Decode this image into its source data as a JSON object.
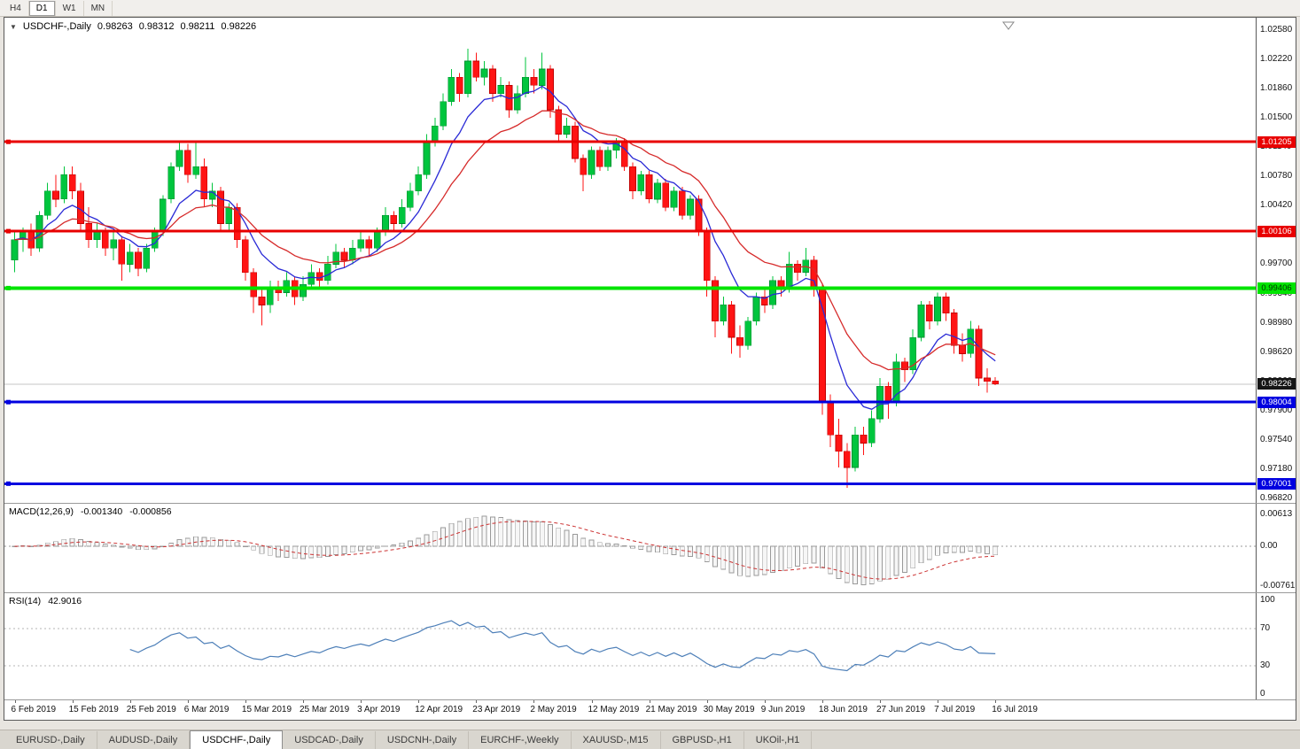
{
  "toolbar": {
    "timeframes": [
      {
        "label": "H4",
        "active": false
      },
      {
        "label": "D1",
        "active": true
      },
      {
        "label": "W1",
        "active": false
      },
      {
        "label": "MN",
        "active": false
      }
    ]
  },
  "chart": {
    "title": {
      "collapse_icon": "▼",
      "symbol_text": "USDCHF-,Daily",
      "open": "0.98263",
      "high": "0.98312",
      "low": "0.98211",
      "close": "0.98226"
    },
    "macd": {
      "label": "MACD(12,26,9)",
      "value1": "-0.001340",
      "value2": "-0.000856"
    },
    "rsi": {
      "label": "RSI(14)",
      "value": "42.9016"
    }
  },
  "colors": {
    "up": "#00C53E",
    "up_edge": "#009130",
    "down": "#FF1414",
    "down_edge": "#C00000",
    "ma_fast": "#2A2AD6",
    "ma_slow": "#D62A2A",
    "level_red": "#E80000",
    "level_green": "#00E400",
    "level_blue": "#0000E0",
    "current_badge": "#151515",
    "macd_hist_stroke": "#9a9a9a",
    "macd_signal": "#CC3333",
    "rsi_line": "#4D7FB8",
    "current_price_line": "#c4c4c4"
  },
  "tabs": {
    "items": [
      {
        "label": "EURUSD-,Daily",
        "active": false
      },
      {
        "label": "AUDUSD-,Daily",
        "active": false
      },
      {
        "label": "USDCHF-,Daily",
        "active": true
      },
      {
        "label": "USDCAD-,Daily",
        "active": false
      },
      {
        "label": "USDCNH-,Daily",
        "active": false
      },
      {
        "label": "EURCHF-,Weekly",
        "active": false
      },
      {
        "label": "XAUUSD-,M15",
        "active": false
      },
      {
        "label": "GBPUSD-,H1",
        "active": false
      },
      {
        "label": "UKOil-,H1",
        "active": false
      }
    ]
  },
  "chart_data": {
    "type": "candlestick",
    "symbol": "USDCHF-",
    "timeframe": "Daily",
    "ohlc_current": {
      "open": 0.98263,
      "high": 0.98312,
      "low": 0.98211,
      "close": 0.98226
    },
    "x_labels": [
      "6 Feb 2019",
      "15 Feb 2019",
      "25 Feb 2019",
      "6 Mar 2019",
      "15 Mar 2019",
      "25 Mar 2019",
      "3 Apr 2019",
      "12 Apr 2019",
      "23 Apr 2019",
      "2 May 2019",
      "12 May 2019",
      "21 May 2019",
      "30 May 2019",
      "9 Jun 2019",
      "18 Jun 2019",
      "27 Jun 2019",
      "7 Jul 2019",
      "16 Jul 2019"
    ],
    "label_every_n_candles": 7,
    "price_axis_labels": [
      "1.02580",
      "1.02220",
      "1.01860",
      "1.01500",
      "1.01140",
      "1.00780",
      "1.00420",
      "1.00060",
      "0.99700",
      "0.99340",
      "0.98980",
      "0.98620",
      "0.98260",
      "0.97900",
      "0.97540",
      "0.97180",
      "0.96820"
    ],
    "macd_axis_labels": [
      "0.00613",
      "0.00",
      "-0.00761"
    ],
    "rsi_axis_labels": [
      "100",
      "70",
      "30",
      "0"
    ],
    "rsi_guide_levels": [
      70,
      30
    ],
    "levels": [
      {
        "price": 1.01205,
        "label": "1.01205",
        "color": "#E80000",
        "text_color": "#ffffff",
        "width": 3
      },
      {
        "price": 1.00106,
        "label": "1.00106",
        "color": "#E80000",
        "text_color": "#ffffff",
        "width": 3
      },
      {
        "price": 0.99406,
        "label": "0.99406",
        "color": "#00E400",
        "text_color": "#003300",
        "width": 4
      },
      {
        "price": 0.98004,
        "label": "0.98004",
        "color": "#0000E0",
        "text_color": "#ffffff",
        "width": 3
      },
      {
        "price": 0.97001,
        "label": "0.97001",
        "color": "#0000E0",
        "text_color": "#ffffff",
        "width": 3
      }
    ],
    "current_price": 0.98226,
    "current_price_label": "0.98226",
    "candles": [
      [
        0.9975,
        1.001,
        0.996,
        1.0
      ],
      [
        1.0,
        1.0015,
        0.9985,
        1.001
      ],
      [
        1.001,
        1.002,
        0.998,
        0.999
      ],
      [
        0.999,
        1.0035,
        0.9985,
        1.003
      ],
      [
        1.003,
        1.007,
        1.0025,
        1.006
      ],
      [
        1.006,
        1.008,
        1.004,
        1.005
      ],
      [
        1.005,
        1.009,
        1.0045,
        1.008
      ],
      [
        1.008,
        1.009,
        1.005,
        1.006
      ],
      [
        1.006,
        1.007,
        1.001,
        1.002
      ],
      [
        1.002,
        1.004,
        0.999,
        1.0
      ],
      [
        1.0,
        1.002,
        0.999,
        1.001
      ],
      [
        1.001,
        1.0015,
        0.998,
        0.999
      ],
      [
        0.999,
        1.001,
        0.9975,
        1.0
      ],
      [
        1.0,
        1.0005,
        0.995,
        0.997
      ],
      [
        0.997,
        0.9995,
        0.996,
        0.9985
      ],
      [
        0.9985,
        0.999,
        0.9955,
        0.9965
      ],
      [
        0.9965,
        0.9995,
        0.996,
        0.999
      ],
      [
        0.999,
        1.0015,
        0.9985,
        1.001
      ],
      [
        1.001,
        1.0055,
        1.0005,
        1.005
      ],
      [
        1.005,
        1.0095,
        1.0045,
        1.009
      ],
      [
        1.009,
        1.0122,
        1.0085,
        1.011
      ],
      [
        1.011,
        1.0118,
        1.007,
        1.008
      ],
      [
        1.008,
        1.012,
        1.0075,
        1.009
      ],
      [
        1.009,
        1.01,
        1.004,
        1.005
      ],
      [
        1.005,
        1.007,
        1.004,
        1.006
      ],
      [
        1.006,
        1.0065,
        1.001,
        1.002
      ],
      [
        1.002,
        1.0045,
        1.001,
        1.004
      ],
      [
        1.004,
        1.0045,
        0.999,
        1.0
      ],
      [
        1.0,
        1.0005,
        0.995,
        0.996
      ],
      [
        0.996,
        0.9965,
        0.991,
        0.993
      ],
      [
        0.993,
        0.994,
        0.9895,
        0.992
      ],
      [
        0.992,
        0.995,
        0.991,
        0.994
      ],
      [
        0.994,
        0.995,
        0.9925,
        0.9935
      ],
      [
        0.9935,
        0.996,
        0.993,
        0.995
      ],
      [
        0.995,
        0.9955,
        0.992,
        0.993
      ],
      [
        0.993,
        0.9955,
        0.9925,
        0.9945
      ],
      [
        0.9945,
        0.997,
        0.994,
        0.996
      ],
      [
        0.996,
        0.9965,
        0.994,
        0.995
      ],
      [
        0.995,
        0.998,
        0.9945,
        0.997
      ],
      [
        0.997,
        0.9995,
        0.9965,
        0.9985
      ],
      [
        0.9985,
        0.999,
        0.9965,
        0.9975
      ],
      [
        0.9975,
        1.0,
        0.997,
        0.999
      ],
      [
        0.999,
        1.001,
        0.9985,
        1.0
      ],
      [
        1.0,
        1.0005,
        0.998,
        0.999
      ],
      [
        0.999,
        1.0015,
        0.9985,
        1.001
      ],
      [
        1.001,
        1.004,
        1.0005,
        1.003
      ],
      [
        1.003,
        1.0035,
        1.001,
        1.002
      ],
      [
        1.002,
        1.005,
        1.0015,
        1.004
      ],
      [
        1.004,
        1.007,
        1.0035,
        1.006
      ],
      [
        1.006,
        1.009,
        1.0055,
        1.008
      ],
      [
        1.008,
        1.013,
        1.0075,
        1.012
      ],
      [
        1.012,
        1.015,
        1.0115,
        1.014
      ],
      [
        1.014,
        1.018,
        1.0135,
        1.017
      ],
      [
        1.017,
        1.021,
        1.0165,
        1.02
      ],
      [
        1.02,
        1.0205,
        1.017,
        1.018
      ],
      [
        1.018,
        1.0235,
        1.0175,
        1.022
      ],
      [
        1.022,
        1.023,
        1.0195,
        1.02
      ],
      [
        1.02,
        1.022,
        1.019,
        1.021
      ],
      [
        1.021,
        1.0215,
        1.017,
        1.018
      ],
      [
        1.018,
        1.02,
        1.0175,
        1.019
      ],
      [
        1.019,
        1.0195,
        1.015,
        1.016
      ],
      [
        1.016,
        1.019,
        1.0155,
        1.018
      ],
      [
        1.018,
        1.0225,
        1.0175,
        1.02
      ],
      [
        1.02,
        1.021,
        1.018,
        1.019
      ],
      [
        1.019,
        1.023,
        1.0185,
        1.021
      ],
      [
        1.021,
        1.0215,
        1.015,
        1.016
      ],
      [
        1.016,
        1.0165,
        1.012,
        1.013
      ],
      [
        1.013,
        1.015,
        1.0125,
        1.014
      ],
      [
        1.014,
        1.0145,
        1.0095,
        1.01
      ],
      [
        1.01,
        1.0105,
        1.006,
        1.008
      ],
      [
        1.008,
        1.0115,
        1.0075,
        1.011
      ],
      [
        1.011,
        1.0115,
        1.0085,
        1.009
      ],
      [
        1.009,
        1.0115,
        1.0085,
        1.011
      ],
      [
        1.011,
        1.0125,
        1.01,
        1.012
      ],
      [
        1.012,
        1.0125,
        1.0085,
        1.009
      ],
      [
        1.009,
        1.0095,
        1.005,
        1.006
      ],
      [
        1.006,
        1.0085,
        1.0055,
        1.008
      ],
      [
        1.008,
        1.0085,
        1.0045,
        1.005
      ],
      [
        1.005,
        1.0075,
        1.0045,
        1.007
      ],
      [
        1.007,
        1.0075,
        1.0035,
        1.004
      ],
      [
        1.004,
        1.0065,
        1.0035,
        1.006
      ],
      [
        1.006,
        1.0065,
        1.0025,
        1.003
      ],
      [
        1.003,
        1.0055,
        1.0025,
        1.005
      ],
      [
        1.005,
        1.0055,
        1.0005,
        1.001
      ],
      [
        1.001,
        1.0015,
        0.993,
        0.995
      ],
      [
        0.995,
        0.9955,
        0.988,
        0.99
      ],
      [
        0.99,
        0.993,
        0.9895,
        0.992
      ],
      [
        0.992,
        0.9925,
        0.986,
        0.988
      ],
      [
        0.988,
        0.9895,
        0.9855,
        0.987
      ],
      [
        0.987,
        0.9905,
        0.9865,
        0.99
      ],
      [
        0.99,
        0.9935,
        0.9895,
        0.993
      ],
      [
        0.993,
        0.994,
        0.991,
        0.992
      ],
      [
        0.992,
        0.9955,
        0.9915,
        0.995
      ],
      [
        0.995,
        0.9955,
        0.993,
        0.994
      ],
      [
        0.994,
        0.9985,
        0.9935,
        0.997
      ],
      [
        0.997,
        0.9975,
        0.995,
        0.996
      ],
      [
        0.996,
        0.999,
        0.9955,
        0.9975
      ],
      [
        0.9975,
        0.998,
        0.993,
        0.994
      ],
      [
        0.994,
        0.9945,
        0.9785,
        0.98
      ],
      [
        0.98,
        0.981,
        0.9745,
        0.976
      ],
      [
        0.976,
        0.978,
        0.972,
        0.974
      ],
      [
        0.974,
        0.975,
        0.9695,
        0.972
      ],
      [
        0.972,
        0.977,
        0.9715,
        0.976
      ],
      [
        0.976,
        0.977,
        0.9735,
        0.975
      ],
      [
        0.975,
        0.979,
        0.9745,
        0.978
      ],
      [
        0.978,
        0.983,
        0.9775,
        0.982
      ],
      [
        0.982,
        0.9825,
        0.978,
        0.98
      ],
      [
        0.98,
        0.986,
        0.9795,
        0.985
      ],
      [
        0.985,
        0.9855,
        0.9825,
        0.984
      ],
      [
        0.984,
        0.989,
        0.9835,
        0.988
      ],
      [
        0.988,
        0.9925,
        0.9875,
        0.992
      ],
      [
        0.992,
        0.9925,
        0.989,
        0.99
      ],
      [
        0.99,
        0.9935,
        0.9895,
        0.993
      ],
      [
        0.993,
        0.9935,
        0.99,
        0.991
      ],
      [
        0.991,
        0.9915,
        0.986,
        0.987
      ],
      [
        0.987,
        0.9885,
        0.985,
        0.986
      ],
      [
        0.986,
        0.99,
        0.9855,
        0.989
      ],
      [
        0.989,
        0.9895,
        0.982,
        0.983
      ],
      [
        0.983,
        0.9842,
        0.9812,
        0.9826
      ],
      [
        0.98263,
        0.98312,
        0.98211,
        0.98226
      ]
    ]
  }
}
